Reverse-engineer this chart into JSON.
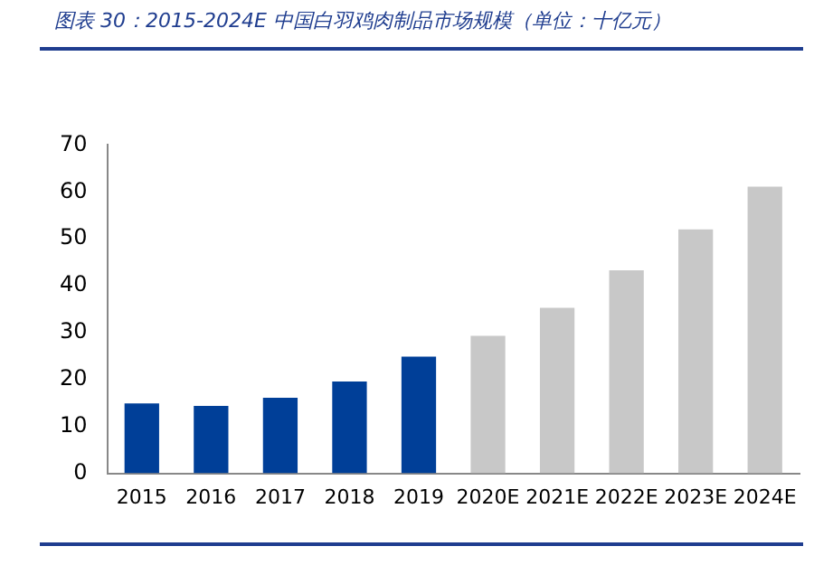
{
  "chart_data": {
    "type": "bar",
    "title": "图表 30：2015-2024E 中国白羽鸡肉制品市场规模（单位：十亿元）",
    "categories": [
      "2015",
      "2016",
      "2017",
      "2018",
      "2019",
      "2020E",
      "2021E",
      "2022E",
      "2023E",
      "2024E"
    ],
    "values": [
      14.9,
      14.4,
      16.1,
      19.6,
      24.9,
      29.3,
      35.3,
      43.3,
      52.0,
      61.1
    ],
    "colors": [
      "#003f98",
      "#003f98",
      "#003f98",
      "#003f98",
      "#003f98",
      "#c8c8c8",
      "#c8c8c8",
      "#c8c8c8",
      "#c8c8c8",
      "#c8c8c8"
    ],
    "ylim": [
      0,
      70
    ],
    "yticks": [
      0,
      10,
      20,
      30,
      40,
      50,
      60,
      70
    ],
    "grid": false,
    "legend": false
  }
}
